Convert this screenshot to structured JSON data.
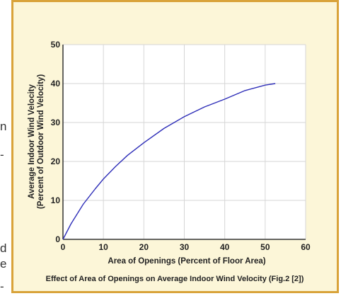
{
  "page": {
    "left_fragments": [
      "n",
      "-",
      "d",
      "e",
      "-"
    ]
  },
  "colors": {
    "background": "#ffffff",
    "panel_fill": "#fcf6d8",
    "panel_border": "#d9a33a",
    "plot_fill": "#ffffff",
    "grid": "#d6d6d6",
    "axis": "#333333",
    "text": "#222222",
    "series": "#2e2eb8"
  },
  "chart_data": {
    "type": "line",
    "title": "",
    "xlabel": "Area of Openings (Percent of Floor Area)",
    "ylabel_lines": [
      "Average Indoor Wind Velocity",
      "(Percent of Outdoor Wind Velocity)"
    ],
    "caption": "Effect of Area of Openings on Average Indoor Wind Velocity (Fig.2 [2])",
    "xlim": [
      0,
      60
    ],
    "ylim": [
      0,
      50
    ],
    "xticks": [
      "0",
      "10",
      "20",
      "30",
      "40",
      "50",
      "60"
    ],
    "yticks": [
      "0",
      "10",
      "20",
      "30",
      "40",
      "50"
    ],
    "grid": true,
    "legend": "none",
    "series": [
      {
        "x": [
          0,
          2,
          5,
          8,
          10,
          13,
          16,
          20,
          25,
          30,
          35,
          40,
          45,
          50,
          52.5
        ],
        "y": [
          0,
          4,
          9,
          13,
          15.5,
          18.7,
          21.6,
          24.8,
          28.5,
          31.5,
          34,
          36,
          38.2,
          39.6,
          40
        ]
      }
    ]
  }
}
